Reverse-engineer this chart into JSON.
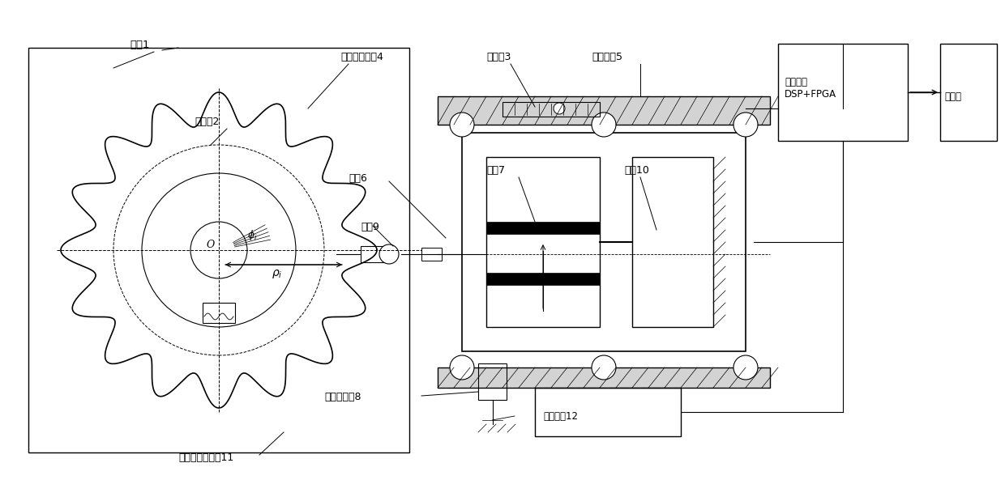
{
  "bg_color": "#ffffff",
  "line_color": "#000000",
  "fig_width": 12.4,
  "fig_height": 6.14,
  "labels": {
    "zhuantai": "转台1",
    "yuanguangce": "圆光栅2",
    "changguangce": "长光栅3",
    "beice": "被测非圆齿轮4",
    "zhixian": "直线电机5",
    "dongkuai": "动块6",
    "pianhuang": "片簧7",
    "diangan": "电感测微仪8",
    "ceqiu": "测球9",
    "dingkuai": "定块10",
    "wugan": "蜗轮蜗杆减速器11",
    "fufu": "伺服电机12",
    "jiekou": "接口电路\nDSP+FPGA",
    "jisuanji": "计算机",
    "phi": "φ i",
    "rho": "ρ i",
    "O": "O"
  }
}
